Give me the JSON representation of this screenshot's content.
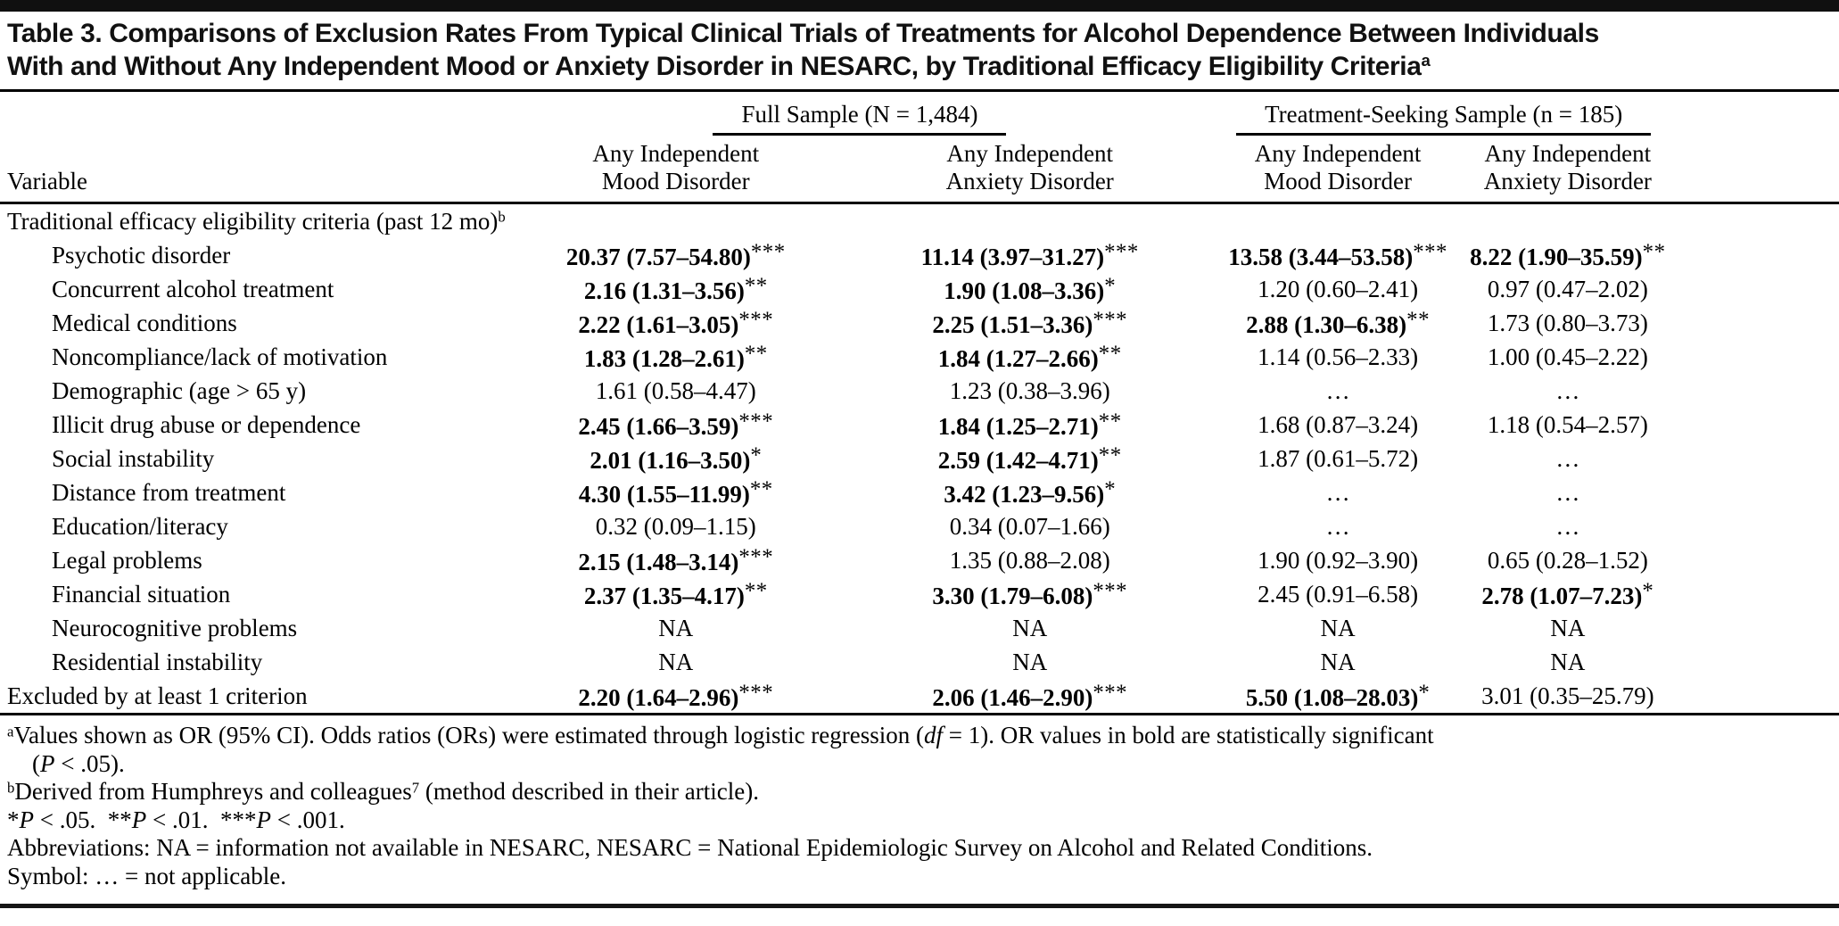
{
  "page": {
    "title": {
      "line1": "Table 3. Comparisons of Exclusion Rates From Typical Clinical Trials of Treatments for Alcohol Dependence Between Individuals",
      "line2": "With and Without Any Independent Mood or Anxiety Disorder in NESARC, by Traditional Efficacy Eligibility Criteria",
      "sup": "a"
    }
  },
  "table": {
    "variable_header": "Variable",
    "groups": [
      {
        "label": "Full Sample (N = 1,484)",
        "sub": [
          [
            "Any Independent",
            "Mood Disorder"
          ],
          [
            "Any Independent",
            "Anxiety Disorder"
          ]
        ]
      },
      {
        "label": "Treatment-Seeking Sample (n = 185)",
        "sub": [
          [
            "Any Independent",
            "Mood Disorder"
          ],
          [
            "Any Independent",
            "Anxiety Disorder"
          ]
        ]
      }
    ],
    "rows": [
      {
        "label": "Traditional efficacy eligibility criteria (past 12 mo)",
        "sup": "b",
        "section": true,
        "indent": false,
        "values": []
      },
      {
        "label": "Psychotic disorder",
        "indent": true,
        "values": [
          {
            "t": "20.37 (7.57–54.80)",
            "s": "***",
            "b": true
          },
          {
            "t": "11.14 (3.97–31.27)",
            "s": "***",
            "b": true
          },
          {
            "t": "13.58 (3.44–53.58)",
            "s": "***",
            "b": true
          },
          {
            "t": "8.22 (1.90–35.59)",
            "s": "**",
            "b": true
          }
        ]
      },
      {
        "label": "Concurrent alcohol treatment",
        "indent": true,
        "values": [
          {
            "t": "2.16 (1.31–3.56)",
            "s": "**",
            "b": true
          },
          {
            "t": "1.90 (1.08–3.36)",
            "s": "*",
            "b": true
          },
          {
            "t": "1.20 (0.60–2.41)",
            "s": "",
            "b": false
          },
          {
            "t": "0.97 (0.47–2.02)",
            "s": "",
            "b": false
          }
        ]
      },
      {
        "label": "Medical conditions",
        "indent": true,
        "values": [
          {
            "t": "2.22 (1.61–3.05)",
            "s": "***",
            "b": true
          },
          {
            "t": "2.25 (1.51–3.36)",
            "s": "***",
            "b": true
          },
          {
            "t": "2.88 (1.30–6.38)",
            "s": "**",
            "b": true
          },
          {
            "t": "1.73 (0.80–3.73)",
            "s": "",
            "b": false
          }
        ]
      },
      {
        "label": "Noncompliance/lack of motivation",
        "indent": true,
        "values": [
          {
            "t": "1.83 (1.28–2.61)",
            "s": "**",
            "b": true
          },
          {
            "t": "1.84 (1.27–2.66)",
            "s": "**",
            "b": true
          },
          {
            "t": "1.14 (0.56–2.33)",
            "s": "",
            "b": false
          },
          {
            "t": "1.00 (0.45–2.22)",
            "s": "",
            "b": false
          }
        ]
      },
      {
        "label": "Demographic (age > 65 y)",
        "indent": true,
        "values": [
          {
            "t": "1.61 (0.58–4.47)",
            "s": "",
            "b": false
          },
          {
            "t": "1.23 (0.38–3.96)",
            "s": "",
            "b": false
          },
          {
            "t": "…",
            "s": "",
            "b": false
          },
          {
            "t": "…",
            "s": "",
            "b": false
          }
        ]
      },
      {
        "label": "Illicit drug abuse or dependence",
        "indent": true,
        "values": [
          {
            "t": "2.45 (1.66–3.59)",
            "s": "***",
            "b": true
          },
          {
            "t": "1.84 (1.25–2.71)",
            "s": "**",
            "b": true
          },
          {
            "t": "1.68 (0.87–3.24)",
            "s": "",
            "b": false
          },
          {
            "t": "1.18 (0.54–2.57)",
            "s": "",
            "b": false
          }
        ]
      },
      {
        "label": "Social instability",
        "indent": true,
        "values": [
          {
            "t": "2.01 (1.16–3.50)",
            "s": "*",
            "b": true
          },
          {
            "t": "2.59 (1.42–4.71)",
            "s": "**",
            "b": true
          },
          {
            "t": "1.87 (0.61–5.72)",
            "s": "",
            "b": false
          },
          {
            "t": "…",
            "s": "",
            "b": false
          }
        ]
      },
      {
        "label": "Distance from treatment",
        "indent": true,
        "values": [
          {
            "t": "4.30 (1.55–11.99)",
            "s": "**",
            "b": true
          },
          {
            "t": "3.42 (1.23–9.56)",
            "s": "*",
            "b": true
          },
          {
            "t": "…",
            "s": "",
            "b": false
          },
          {
            "t": "…",
            "s": "",
            "b": false
          }
        ]
      },
      {
        "label": "Education/literacy",
        "indent": true,
        "values": [
          {
            "t": "0.32 (0.09–1.15)",
            "s": "",
            "b": false
          },
          {
            "t": "0.34 (0.07–1.66)",
            "s": "",
            "b": false
          },
          {
            "t": "…",
            "s": "",
            "b": false
          },
          {
            "t": "…",
            "s": "",
            "b": false
          }
        ]
      },
      {
        "label": "Legal problems",
        "indent": true,
        "values": [
          {
            "t": "2.15 (1.48–3.14)",
            "s": "***",
            "b": true
          },
          {
            "t": "1.35 (0.88–2.08)",
            "s": "",
            "b": false
          },
          {
            "t": "1.90 (0.92–3.90)",
            "s": "",
            "b": false
          },
          {
            "t": "0.65 (0.28–1.52)",
            "s": "",
            "b": false
          }
        ]
      },
      {
        "label": "Financial situation",
        "indent": true,
        "values": [
          {
            "t": "2.37 (1.35–4.17)",
            "s": "**",
            "b": true
          },
          {
            "t": "3.30 (1.79–6.08)",
            "s": "***",
            "b": true
          },
          {
            "t": "2.45 (0.91–6.58)",
            "s": "",
            "b": false
          },
          {
            "t": "2.78 (1.07–7.23)",
            "s": "*",
            "b": true
          }
        ]
      },
      {
        "label": "Neurocognitive problems",
        "indent": true,
        "values": [
          {
            "t": "NA",
            "s": "",
            "b": false
          },
          {
            "t": "NA",
            "s": "",
            "b": false
          },
          {
            "t": "NA",
            "s": "",
            "b": false
          },
          {
            "t": "NA",
            "s": "",
            "b": false
          }
        ]
      },
      {
        "label": "Residential instability",
        "indent": true,
        "values": [
          {
            "t": "NA",
            "s": "",
            "b": false
          },
          {
            "t": "NA",
            "s": "",
            "b": false
          },
          {
            "t": "NA",
            "s": "",
            "b": false
          },
          {
            "t": "NA",
            "s": "",
            "b": false
          }
        ]
      },
      {
        "label": "Excluded by at least 1 criterion",
        "indent": false,
        "values": [
          {
            "t": "2.20 (1.64–2.96)",
            "s": "***",
            "b": true
          },
          {
            "t": "2.06 (1.46–2.90)",
            "s": "***",
            "b": true
          },
          {
            "t": "5.50 (1.08–28.03)",
            "s": "*",
            "b": true
          },
          {
            "t": "3.01 (0.35–25.79)",
            "s": "",
            "b": false
          }
        ]
      }
    ]
  },
  "footnotes": [
    {
      "indent": false,
      "segs": [
        {
          "t": "a",
          "sup": true
        },
        {
          "t": "Values shown as OR (95% CI). Odds ratios (ORs) were estimated through logistic regression ("
        },
        {
          "t": "df",
          "i": true
        },
        {
          "t": " = 1). OR values in bold are statistically significant"
        }
      ]
    },
    {
      "indent": true,
      "segs": [
        {
          "t": "("
        },
        {
          "t": "P",
          "i": true
        },
        {
          "t": " < .05)."
        }
      ]
    },
    {
      "indent": false,
      "segs": [
        {
          "t": "b",
          "sup": true
        },
        {
          "t": "Derived from Humphreys and colleagues"
        },
        {
          "t": "7",
          "sup": true
        },
        {
          "t": " (method described in their article)."
        }
      ]
    },
    {
      "indent": false,
      "segs": [
        {
          "t": "*"
        },
        {
          "t": "P",
          "i": true
        },
        {
          "t": " < .05.  **"
        },
        {
          "t": "P",
          "i": true
        },
        {
          "t": " < .01.  ***"
        },
        {
          "t": "P",
          "i": true
        },
        {
          "t": " < .001."
        }
      ]
    },
    {
      "indent": false,
      "segs": [
        {
          "t": "Abbreviations: NA = information not available in NESARC, NESARC = National Epidemiologic Survey on Alcohol and Related Conditions."
        }
      ]
    },
    {
      "indent": false,
      "segs": [
        {
          "t": "Symbol: … = not applicable."
        }
      ]
    }
  ]
}
